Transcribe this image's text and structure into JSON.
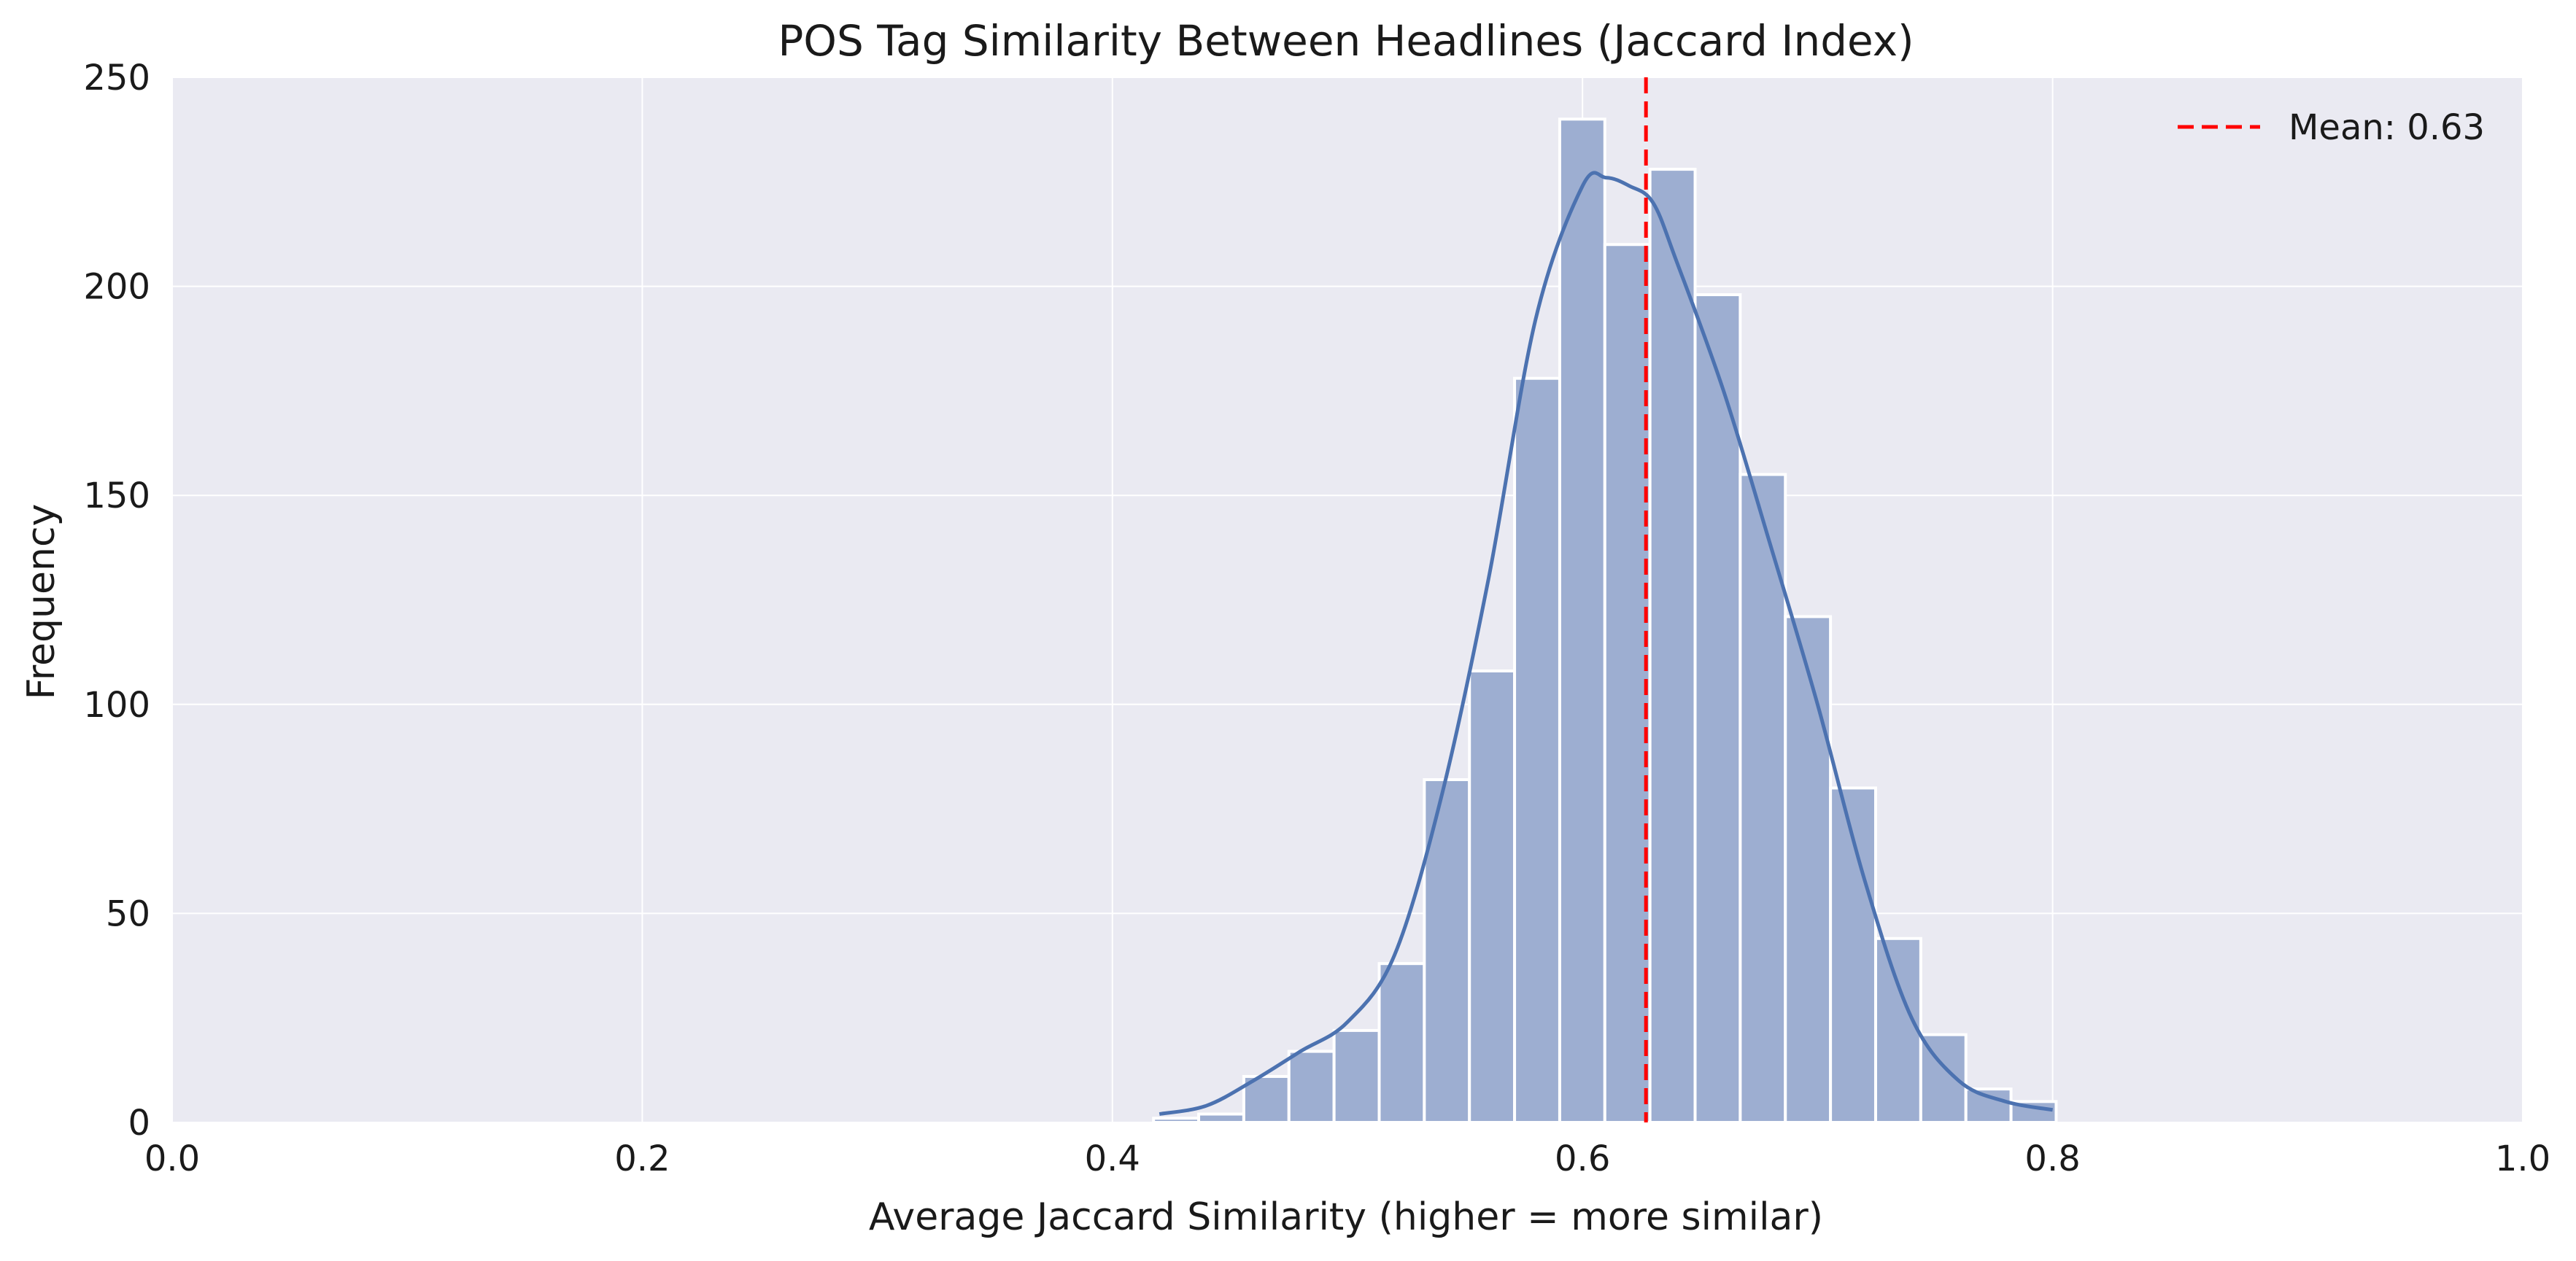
{
  "chart_data": {
    "type": "bar",
    "title": "POS Tag Similarity Between Headlines (Jaccard Index)",
    "xlabel": "Average Jaccard Similarity (higher = more similar)",
    "ylabel": "Frequency",
    "xlim": [
      0.0,
      1.0
    ],
    "ylim": [
      0,
      250
    ],
    "x_ticks": [
      "0.0",
      "0.2",
      "0.4",
      "0.6",
      "0.8",
      "1.0"
    ],
    "y_ticks": [
      "0",
      "50",
      "100",
      "150",
      "200",
      "250"
    ],
    "grid": true,
    "bin_edges": [
      0.4175,
      0.4367,
      0.4559,
      0.4751,
      0.4943,
      0.5135,
      0.5327,
      0.5519,
      0.5711,
      0.5903,
      0.6095,
      0.6287,
      0.6479,
      0.6671,
      0.6863,
      0.7055,
      0.7247,
      0.7439,
      0.7631,
      0.7823,
      0.8015
    ],
    "counts": [
      1,
      2,
      11,
      17,
      22,
      38,
      82,
      108,
      178,
      240,
      210,
      228,
      198,
      155,
      121,
      80,
      44,
      21,
      8,
      5
    ],
    "kde": {
      "x": [
        0.42,
        0.44,
        0.46,
        0.48,
        0.5,
        0.52,
        0.54,
        0.56,
        0.58,
        0.6,
        0.61,
        0.62,
        0.63,
        0.64,
        0.66,
        0.68,
        0.7,
        0.72,
        0.74,
        0.76,
        0.78,
        0.8
      ],
      "y": [
        2,
        4,
        10,
        17,
        24,
        40,
        78,
        130,
        192,
        224,
        226,
        224,
        220,
        206,
        175,
        138,
        100,
        58,
        25,
        10,
        5,
        3
      ]
    },
    "mean_line": {
      "value": 0.627,
      "label": "Mean: 0.63",
      "color": "#ff0000"
    },
    "colors": {
      "bar_fill": "#9daed1",
      "bar_edge": "#ffffff",
      "kde_line": "#4c72b0",
      "plot_background": "#eaeaf2",
      "grid": "#ffffff"
    },
    "legend": {
      "position": "top-right",
      "entries": [
        "Mean: 0.63"
      ]
    }
  }
}
